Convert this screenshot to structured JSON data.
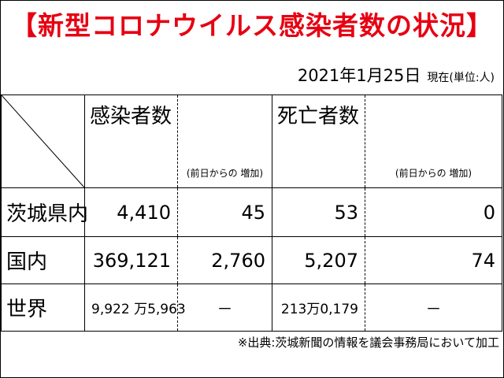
{
  "header": {
    "title": "【新型コロナウイルス感染者数の状況】",
    "title_color": "#e60012",
    "date": "2021年1月25日",
    "as_of": "現在(単位:人)"
  },
  "table": {
    "columns": {
      "infections": "感染者数",
      "infections_delta": "(前日からの 増加)",
      "deaths": "死亡者数",
      "deaths_delta": "(前日からの 増加)"
    },
    "rows": [
      {
        "label": "茨城県内",
        "infections": "4,410",
        "infections_delta": "45",
        "deaths": "53",
        "deaths_delta": "0"
      },
      {
        "label": "国内",
        "infections": "369,121",
        "infections_delta": "2,760",
        "deaths": "5,207",
        "deaths_delta": "74"
      },
      {
        "label": "世界",
        "infections": "9,922 万5,963",
        "infections_delta": "－",
        "deaths": "213万0,179",
        "deaths_delta": "－"
      }
    ]
  },
  "footer": {
    "source": "※出典:茨城新聞の情報を議会事務局において加工"
  }
}
